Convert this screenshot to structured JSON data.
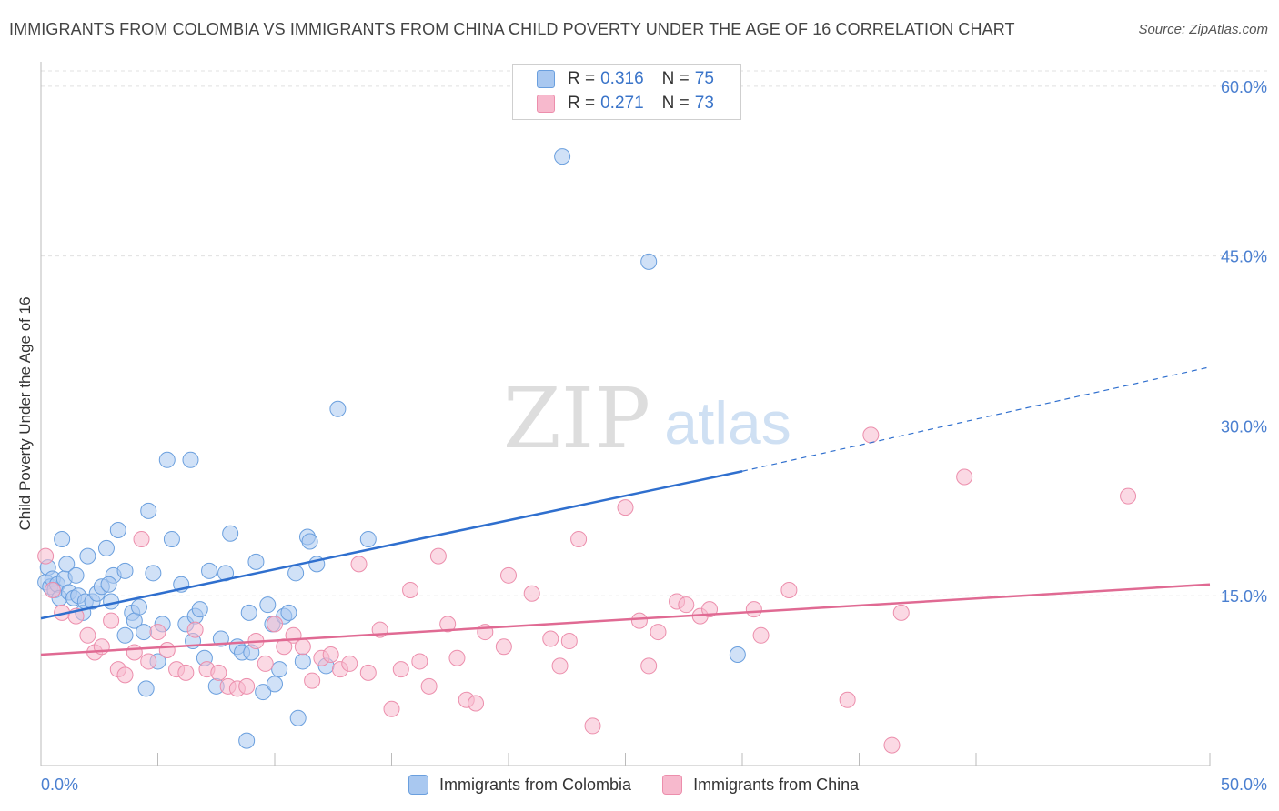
{
  "title": "IMMIGRANTS FROM COLOMBIA VS IMMIGRANTS FROM CHINA CHILD POVERTY UNDER THE AGE OF 16 CORRELATION CHART",
  "source": "Source: ZipAtlas.com",
  "watermark": {
    "zip": "ZIP",
    "atlas": "atlas"
  },
  "colors": {
    "colombia_fill": "#a9c8f0",
    "colombia_stroke": "#6a9fde",
    "colombia_line": "#2f6fce",
    "china_fill": "#f7b9cd",
    "china_stroke": "#ec8eac",
    "china_line": "#e06a93",
    "axis_label": "#4a7fd0",
    "grid": "#e0e0e0"
  },
  "legend_top": [
    {
      "r_label": "R =",
      "r_value": "0.316",
      "n_label": "N =",
      "n_value": "75"
    },
    {
      "r_label": "R =",
      "r_value": "0.271",
      "n_label": "N =",
      "n_value": "73"
    }
  ],
  "chart_data": {
    "type": "scatter",
    "title": "IMMIGRANTS FROM COLOMBIA VS IMMIGRANTS FROM CHINA CHILD POVERTY UNDER THE AGE OF 16 CORRELATION CHART",
    "xlabel": "",
    "ylabel": "Child Poverty Under the Age of 16",
    "xlim": [
      0,
      50
    ],
    "ylim": [
      0,
      62
    ],
    "x_tick_labels": [
      "0.0%",
      "50.0%"
    ],
    "y_ticks": [
      15,
      30,
      45,
      60
    ],
    "y_tick_labels": [
      "15.0%",
      "30.0%",
      "45.0%",
      "60.0%"
    ],
    "grid": true,
    "legend_position": "bottom",
    "series": [
      {
        "name": "Immigrants from Colombia",
        "R": 0.316,
        "N": 75,
        "trend": {
          "x0": 0,
          "y0": 13.0,
          "x1": 30,
          "y1": 26.0,
          "dashed_to_x": 50,
          "dashed_to_y": 35.2
        },
        "points": [
          [
            0.2,
            16.2
          ],
          [
            0.3,
            17.5
          ],
          [
            0.4,
            15.8
          ],
          [
            0.5,
            16.5
          ],
          [
            0.6,
            15.5
          ],
          [
            0.7,
            16.0
          ],
          [
            0.8,
            14.8
          ],
          [
            0.9,
            20.0
          ],
          [
            1.0,
            16.5
          ],
          [
            1.1,
            17.8
          ],
          [
            1.2,
            15.3
          ],
          [
            1.4,
            14.8
          ],
          [
            1.5,
            16.8
          ],
          [
            1.6,
            15.0
          ],
          [
            1.8,
            13.5
          ],
          [
            1.9,
            14.5
          ],
          [
            2.0,
            18.5
          ],
          [
            2.2,
            14.5
          ],
          [
            2.4,
            15.2
          ],
          [
            2.6,
            15.8
          ],
          [
            2.8,
            19.2
          ],
          [
            3.0,
            14.5
          ],
          [
            3.1,
            16.8
          ],
          [
            3.3,
            20.8
          ],
          [
            3.6,
            17.2
          ],
          [
            3.9,
            13.5
          ],
          [
            4.0,
            12.8
          ],
          [
            4.2,
            14.0
          ],
          [
            4.4,
            11.8
          ],
          [
            4.6,
            22.5
          ],
          [
            4.8,
            17.0
          ],
          [
            5.0,
            9.2
          ],
          [
            5.2,
            12.5
          ],
          [
            5.4,
            27.0
          ],
          [
            5.6,
            20.0
          ],
          [
            6.0,
            16.0
          ],
          [
            6.2,
            12.5
          ],
          [
            6.4,
            27.0
          ],
          [
            6.6,
            13.2
          ],
          [
            6.8,
            13.8
          ],
          [
            7.0,
            9.5
          ],
          [
            7.2,
            17.2
          ],
          [
            7.5,
            7.0
          ],
          [
            7.7,
            11.2
          ],
          [
            7.9,
            17.0
          ],
          [
            8.1,
            20.5
          ],
          [
            8.4,
            10.5
          ],
          [
            8.6,
            10.0
          ],
          [
            8.8,
            2.2
          ],
          [
            8.9,
            13.5
          ],
          [
            9.0,
            10.0
          ],
          [
            9.2,
            18.0
          ],
          [
            9.5,
            6.5
          ],
          [
            9.9,
            12.5
          ],
          [
            10.0,
            7.2
          ],
          [
            10.2,
            8.5
          ],
          [
            10.4,
            13.2
          ],
          [
            10.6,
            13.5
          ],
          [
            10.9,
            17.0
          ],
          [
            11.0,
            4.2
          ],
          [
            11.2,
            9.2
          ],
          [
            11.4,
            20.2
          ],
          [
            11.5,
            19.8
          ],
          [
            11.8,
            17.8
          ],
          [
            12.2,
            8.8
          ],
          [
            12.7,
            31.5
          ],
          [
            14.0,
            20.0
          ],
          [
            22.3,
            53.8
          ],
          [
            26.0,
            44.5
          ],
          [
            29.8,
            9.8
          ],
          [
            3.6,
            11.5
          ],
          [
            6.5,
            11.0
          ],
          [
            2.9,
            16.0
          ],
          [
            9.7,
            14.2
          ],
          [
            4.5,
            6.8
          ]
        ]
      },
      {
        "name": "Immigrants from China",
        "R": 0.271,
        "N": 73,
        "trend": {
          "x0": 0,
          "y0": 9.8,
          "x1": 50,
          "y1": 16.0
        },
        "points": [
          [
            0.2,
            18.5
          ],
          [
            0.5,
            15.5
          ],
          [
            0.9,
            13.5
          ],
          [
            1.5,
            13.2
          ],
          [
            2.0,
            11.5
          ],
          [
            2.3,
            10.0
          ],
          [
            2.6,
            10.5
          ],
          [
            3.0,
            12.8
          ],
          [
            3.3,
            8.5
          ],
          [
            3.6,
            8.0
          ],
          [
            4.0,
            10.0
          ],
          [
            4.3,
            20.0
          ],
          [
            4.6,
            9.2
          ],
          [
            5.0,
            11.8
          ],
          [
            5.4,
            10.2
          ],
          [
            5.8,
            8.5
          ],
          [
            6.2,
            8.2
          ],
          [
            6.6,
            12.0
          ],
          [
            7.1,
            8.5
          ],
          [
            7.6,
            8.2
          ],
          [
            8.0,
            7.0
          ],
          [
            8.4,
            6.8
          ],
          [
            8.8,
            7.0
          ],
          [
            9.2,
            11.0
          ],
          [
            9.6,
            9.0
          ],
          [
            10.0,
            12.5
          ],
          [
            10.4,
            10.5
          ],
          [
            10.8,
            11.5
          ],
          [
            11.2,
            10.5
          ],
          [
            11.6,
            7.5
          ],
          [
            12.0,
            9.5
          ],
          [
            12.4,
            9.8
          ],
          [
            12.8,
            8.5
          ],
          [
            13.2,
            9.0
          ],
          [
            13.6,
            17.8
          ],
          [
            14.0,
            8.2
          ],
          [
            14.5,
            12.0
          ],
          [
            15.0,
            5.0
          ],
          [
            15.4,
            8.5
          ],
          [
            15.8,
            15.5
          ],
          [
            16.2,
            9.2
          ],
          [
            16.6,
            7.0
          ],
          [
            17.0,
            18.5
          ],
          [
            17.4,
            12.5
          ],
          [
            17.8,
            9.5
          ],
          [
            18.2,
            5.8
          ],
          [
            18.6,
            5.5
          ],
          [
            19.0,
            11.8
          ],
          [
            20.0,
            16.8
          ],
          [
            21.0,
            15.2
          ],
          [
            21.8,
            11.2
          ],
          [
            22.2,
            8.8
          ],
          [
            22.6,
            11.0
          ],
          [
            23.0,
            20.0
          ],
          [
            23.6,
            3.5
          ],
          [
            25.0,
            22.8
          ],
          [
            25.6,
            12.8
          ],
          [
            26.0,
            8.8
          ],
          [
            26.4,
            11.8
          ],
          [
            27.2,
            14.5
          ],
          [
            27.6,
            14.2
          ],
          [
            28.2,
            13.2
          ],
          [
            28.6,
            13.8
          ],
          [
            30.5,
            13.8
          ],
          [
            30.8,
            11.5
          ],
          [
            32.0,
            15.5
          ],
          [
            34.5,
            5.8
          ],
          [
            35.5,
            29.2
          ],
          [
            36.4,
            1.8
          ],
          [
            36.8,
            13.5
          ],
          [
            39.5,
            25.5
          ],
          [
            46.5,
            23.8
          ],
          [
            19.8,
            10.5
          ]
        ]
      }
    ]
  },
  "bottom_legend": [
    "Immigrants from Colombia",
    "Immigrants from China"
  ]
}
